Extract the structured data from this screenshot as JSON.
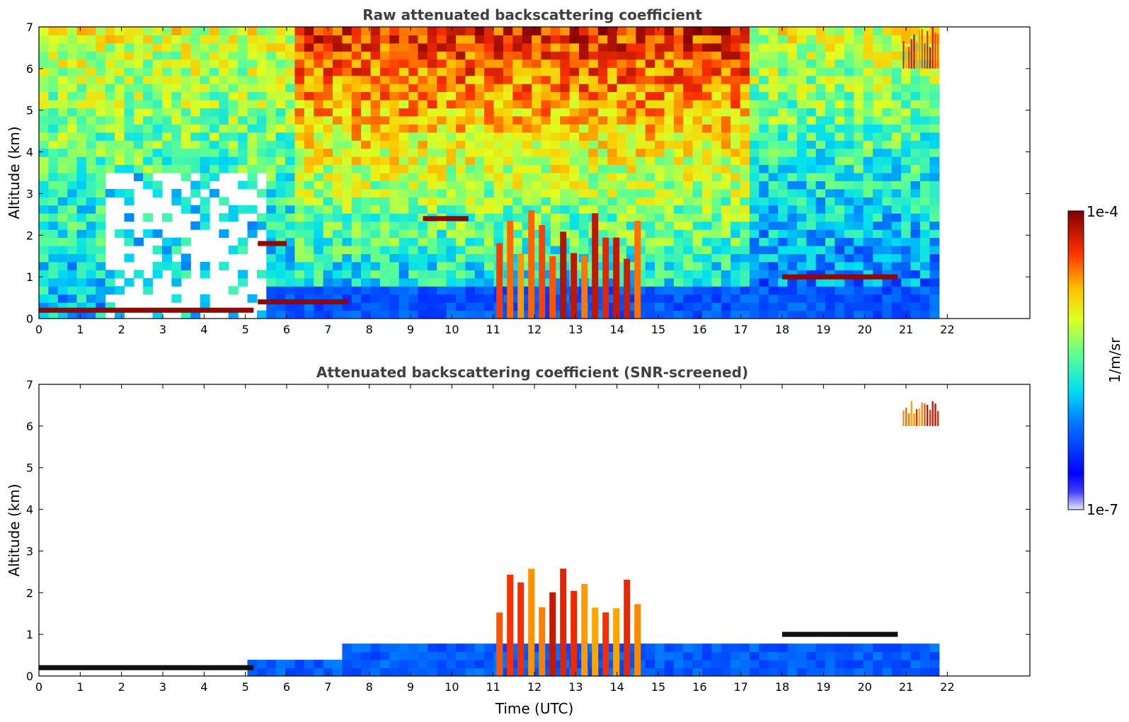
{
  "chart_data": [
    {
      "type": "heatmap",
      "title": "Raw attenuated backscattering coefficient",
      "xlabel": "",
      "ylabel": "Altitude (km)",
      "xlim": [
        0,
        24
      ],
      "ylim": [
        0,
        7
      ],
      "xticks": [
        0,
        1,
        2,
        3,
        4,
        5,
        6,
        7,
        8,
        9,
        10,
        11,
        12,
        13,
        14,
        15,
        16,
        17,
        18,
        19,
        20,
        21,
        22
      ],
      "yticks": [
        0,
        1,
        2,
        3,
        4,
        5,
        6,
        7
      ],
      "data_end_time": 21.8,
      "features": [
        {
          "name": "boundary layer top",
          "time_range": [
            0,
            5.2
          ],
          "altitude": 0.2
        },
        {
          "name": "boundary layer top",
          "time_range": [
            5.3,
            7.5
          ],
          "altitude": 0.4
        },
        {
          "name": "cloud layer",
          "time_range": [
            5.3,
            6.0
          ],
          "altitude": 1.8
        },
        {
          "name": "cloud layer",
          "time_range": [
            9.3,
            10.4
          ],
          "altitude": 2.4
        },
        {
          "name": "cloud layer",
          "time_range": [
            18.0,
            20.8
          ],
          "altitude": 1.0
        },
        {
          "name": "precipitation shafts",
          "time_range": [
            11.0,
            14.6
          ],
          "altitude_range": [
            0,
            2.7
          ]
        },
        {
          "name": "high cloud",
          "time_range": [
            20.9,
            21.8
          ],
          "altitude_range": [
            6.0,
            7.0
          ]
        }
      ]
    },
    {
      "type": "heatmap",
      "title": "Attenuated backscattering coefficient (SNR-screened)",
      "xlabel": "Time (UTC)",
      "ylabel": "Altitude (km)",
      "xlim": [
        0,
        24
      ],
      "ylim": [
        0,
        7
      ],
      "xticks": [
        0,
        1,
        2,
        3,
        4,
        5,
        6,
        7,
        8,
        9,
        10,
        11,
        12,
        13,
        14,
        15,
        16,
        17,
        18,
        19,
        20,
        21,
        22
      ],
      "yticks": [
        0,
        1,
        2,
        3,
        4,
        5,
        6,
        7
      ],
      "data_end_time": 21.8,
      "features": [
        {
          "name": "boundary layer top",
          "time_range": [
            0,
            5.2
          ],
          "altitude": 0.2
        },
        {
          "name": "cloud layer",
          "time_range": [
            18.0,
            20.8
          ],
          "altitude": 1.0
        },
        {
          "name": "precipitation shafts",
          "time_range": [
            11.0,
            14.6
          ],
          "altitude_range": [
            0,
            2.7
          ]
        },
        {
          "name": "high cloud",
          "time_range": [
            20.9,
            21.8
          ],
          "altitude_range": [
            6.0,
            6.6
          ]
        }
      ]
    }
  ],
  "colorbar": {
    "label": "1/m/sr",
    "max_label": "1e-4",
    "min_label": "1e-7",
    "colormap": "jet"
  }
}
